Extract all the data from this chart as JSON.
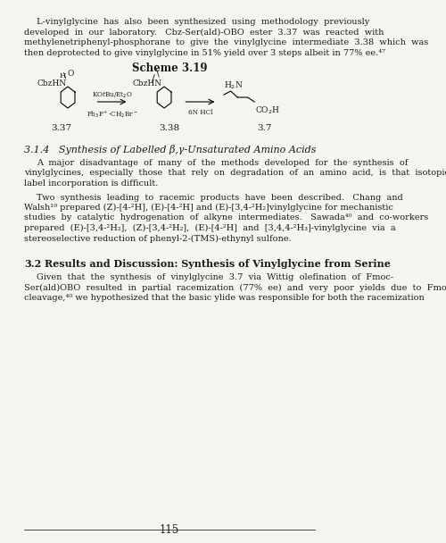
{
  "bg_color": "#f5f5f0",
  "page_bg": "#f5f5f0",
  "text_color": "#1a1a1a",
  "page_number": "115",
  "title_scheme": "Scheme 3.19",
  "section_header": "3.1.4   Synthesis of Labelled β,γ-Unsaturated Amino Acids",
  "section_32_label": "3.2",
  "section_32_title": "Results and Discussion: Synthesis of Vinylglycine from Serine",
  "para1": "L-vinylglycine has also been synthesized using methodology previously developed in our laboratory.  Cbz-Ser(ald)-OBO ester 3.37 was reacted with methylenetriphenyl-phosphorane to give the vinylglycine intermediate 3.38 which was then deprotected to give vinylglycine in 51% yield over 3 steps albeit in 77% ee.",
  "para2": "A major disadvantage of many of the methods developed for the synthesis of vinylglycines, especially those that rely on degradation of an amino acid, is that isotopic label incorporation is difficult.",
  "para3": "Two synthesis leading to racemic products have been described.  Chang and Walsh¹⁹ prepared (Z)-[4-²H], (E)-[4-²H] and (E)-[3,4-²H₂]vinylglycine for mechanistic studies by catalytic hydrogenation of alkyne intermediates.  Sawada⁴⁰ and co-workers prepared (E)-[3,4-²H₂], (Z)-[3,4-²H₂], (E)-[4-²H] and [3,4,4-²H₃]-vinylglycine via a stereoselective reduction of phenyl-2-(TMS)-ethynyl sulfone.",
  "para4": "Given that the synthesis of vinylglycine 3.7 via Wittig olefination of Fmoc-Ser(ald)OBO resulted in partial racemization (77% ee) and very poor yields due to Fmoc cleavage,⁴⁰ we hypothesized that the basic ylide was responsible for both the racemization"
}
